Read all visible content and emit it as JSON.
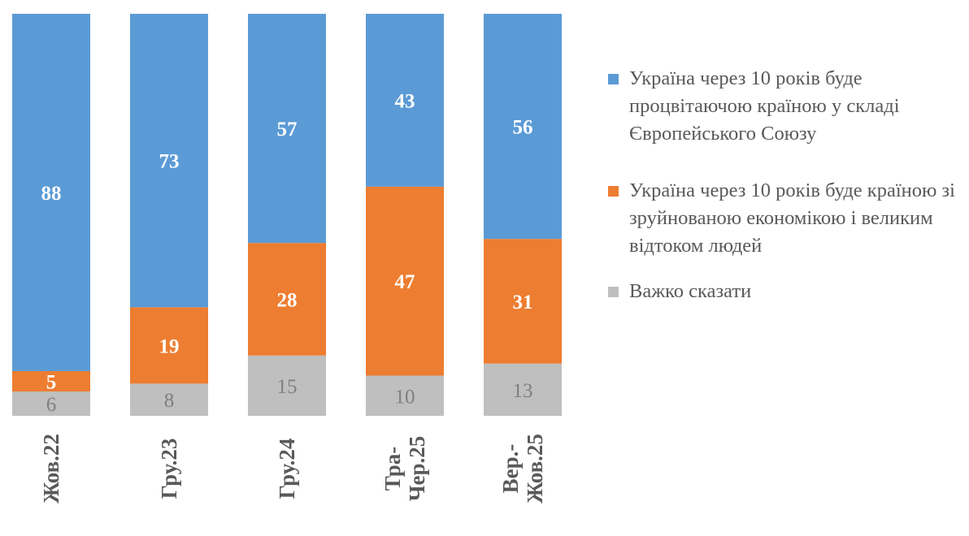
{
  "chart_data": {
    "type": "bar",
    "stacked": true,
    "categories": [
      "Жов.22",
      "Гру.23",
      "Гру.24",
      "Тра-\nЧер.25",
      "Вер.-\nЖов.25"
    ],
    "series": [
      {
        "name": "Україна через 10 років буде процвітаючою країною у складі Європейського Союзу",
        "values": [
          88,
          73,
          57,
          43,
          56
        ],
        "color": "#5B9BD5",
        "label_color": "#ffffff"
      },
      {
        "name": "Україна через 10 років буде країною зі зруйнованою економікою і великим відтоком людей",
        "values": [
          5,
          19,
          28,
          47,
          31
        ],
        "color": "#ED7D31",
        "label_color": "#ffffff"
      },
      {
        "name": "Важко сказати",
        "values": [
          6,
          8,
          15,
          10,
          13
        ],
        "color": "#BFBFBF",
        "label_color": "#7F7F7F"
      }
    ],
    "legend_position": "right",
    "grid": false,
    "ylim": [
      0,
      100
    ]
  }
}
